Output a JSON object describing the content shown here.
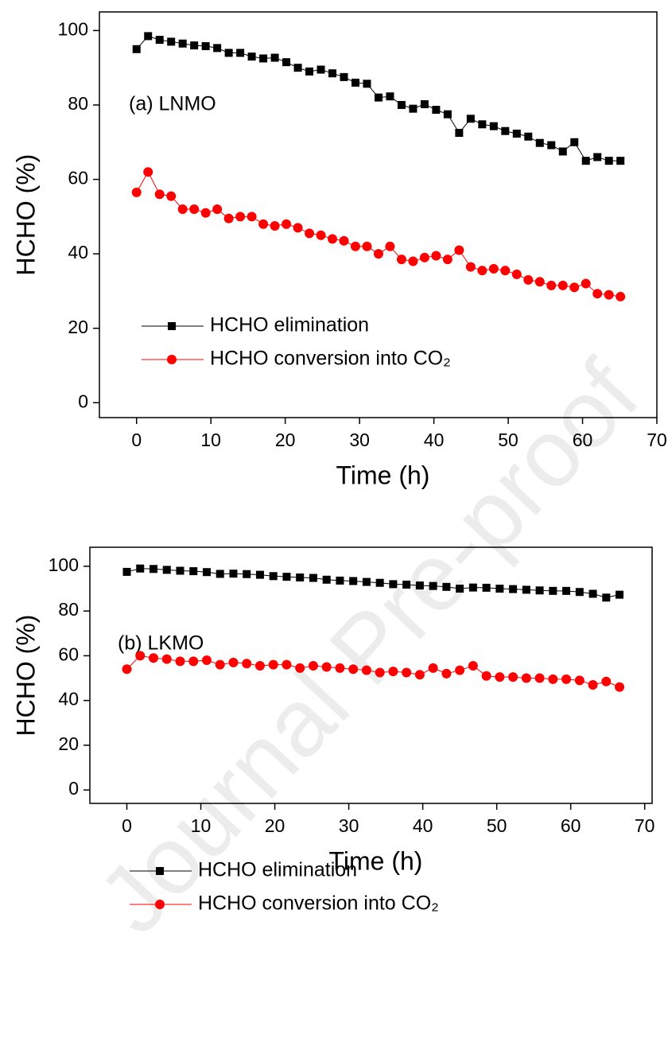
{
  "watermark": "Journal Pre-proof",
  "chart_data": [
    {
      "type": "line",
      "annotation": "(a) LNMO",
      "xlabel": "Time (h)",
      "ylabel": "HCHO (%)",
      "x": [
        0,
        1.55,
        3.1,
        4.65,
        6.2,
        7.75,
        9.3,
        10.85,
        12.4,
        13.95,
        15.5,
        17.05,
        18.6,
        20.15,
        21.7,
        23.25,
        24.8,
        26.35,
        27.9,
        29.45,
        31,
        32.55,
        34.1,
        35.65,
        37.2,
        38.75,
        40.3,
        41.85,
        43.4,
        44.95,
        46.5,
        48.05,
        49.6,
        51.15,
        52.7,
        54.25,
        55.8,
        57.35,
        58.9,
        60.45,
        62,
        63.55,
        65.1
      ],
      "series": [
        {
          "name": "HCHO elimination",
          "color": "#000000",
          "marker": "square",
          "values": [
            95,
            98.5,
            97.5,
            97,
            96.5,
            96,
            95.8,
            95.3,
            94,
            94,
            93,
            92.5,
            92.7,
            91.5,
            90,
            89,
            89.5,
            88.5,
            87.5,
            86,
            85.7,
            82,
            82.3,
            80,
            79,
            80.2,
            78.7,
            77.5,
            72.5,
            76.3,
            74.8,
            74.3,
            73,
            72.3,
            71.5,
            69.8,
            69.2,
            67.5,
            70,
            65,
            66,
            65,
            65
          ]
        },
        {
          "name": "HCHO conversion into CO₂",
          "color": "#ff0000",
          "marker": "circle",
          "values": [
            56.5,
            62,
            56,
            55.5,
            52,
            52,
            51,
            52,
            49.5,
            50,
            50,
            48,
            47.5,
            48,
            47,
            45.5,
            45,
            44,
            43.5,
            42,
            42,
            40,
            42,
            38.5,
            38,
            39,
            39.5,
            38.5,
            41,
            36.5,
            35.5,
            36,
            35.5,
            34.5,
            33,
            32.5,
            31.5,
            31.5,
            31,
            32,
            29.3,
            29,
            28.5
          ]
        }
      ],
      "xlim": [
        -5,
        70
      ],
      "xticks": [
        0,
        10,
        20,
        30,
        40,
        50,
        60,
        70
      ],
      "ylim": [
        -4,
        105
      ],
      "yticks": [
        0,
        20,
        40,
        60,
        80,
        100
      ],
      "legend": "lower left"
    },
    {
      "type": "line",
      "annotation": "(b) LKMO",
      "xlabel": "Time (h)",
      "ylabel": "HCHO (%)",
      "x": [
        0,
        1.8,
        3.6,
        5.4,
        7.2,
        9,
        10.8,
        12.6,
        14.4,
        16.2,
        18,
        19.8,
        21.6,
        23.4,
        25.2,
        27,
        28.8,
        30.6,
        32.4,
        34.2,
        36,
        37.8,
        39.6,
        41.4,
        43.2,
        45,
        46.8,
        48.6,
        50.4,
        52.2,
        54,
        55.8,
        57.6,
        59.4,
        61.2,
        63,
        64.8,
        66.6
      ],
      "series": [
        {
          "name": "HCHO elimination",
          "color": "#000000",
          "marker": "square",
          "values": [
            97.5,
            99,
            98.8,
            98.4,
            98,
            97.8,
            97.4,
            96.6,
            96.7,
            96.5,
            96.2,
            95.6,
            95.3,
            95,
            94.8,
            94,
            93.6,
            93.4,
            93,
            92.6,
            92,
            91.8,
            91.4,
            91.2,
            90.8,
            90,
            90.5,
            90.4,
            90,
            89.8,
            89.5,
            89.2,
            89,
            89,
            88.5,
            87.7,
            86,
            87.3
          ]
        },
        {
          "name": "HCHO conversion into CO₂",
          "color": "#ff0000",
          "marker": "circle",
          "values": [
            54,
            60,
            59,
            58.5,
            57.5,
            57.5,
            58,
            56,
            57,
            56.5,
            55.5,
            56,
            56,
            54.5,
            55.5,
            55,
            54.5,
            54,
            53.5,
            52.5,
            53,
            52.5,
            51.5,
            54.5,
            52,
            53.5,
            55.5,
            51,
            50.5,
            50.5,
            50,
            50,
            49.5,
            49.5,
            49,
            47,
            48.5,
            46
          ]
        }
      ],
      "xlim": [
        -5,
        71
      ],
      "xticks": [
        0,
        10,
        20,
        30,
        40,
        50,
        60,
        70
      ],
      "ylim": [
        -6,
        108.5
      ],
      "yticks": [
        0,
        20,
        40,
        60,
        80,
        100
      ],
      "legend": "lower left"
    }
  ]
}
